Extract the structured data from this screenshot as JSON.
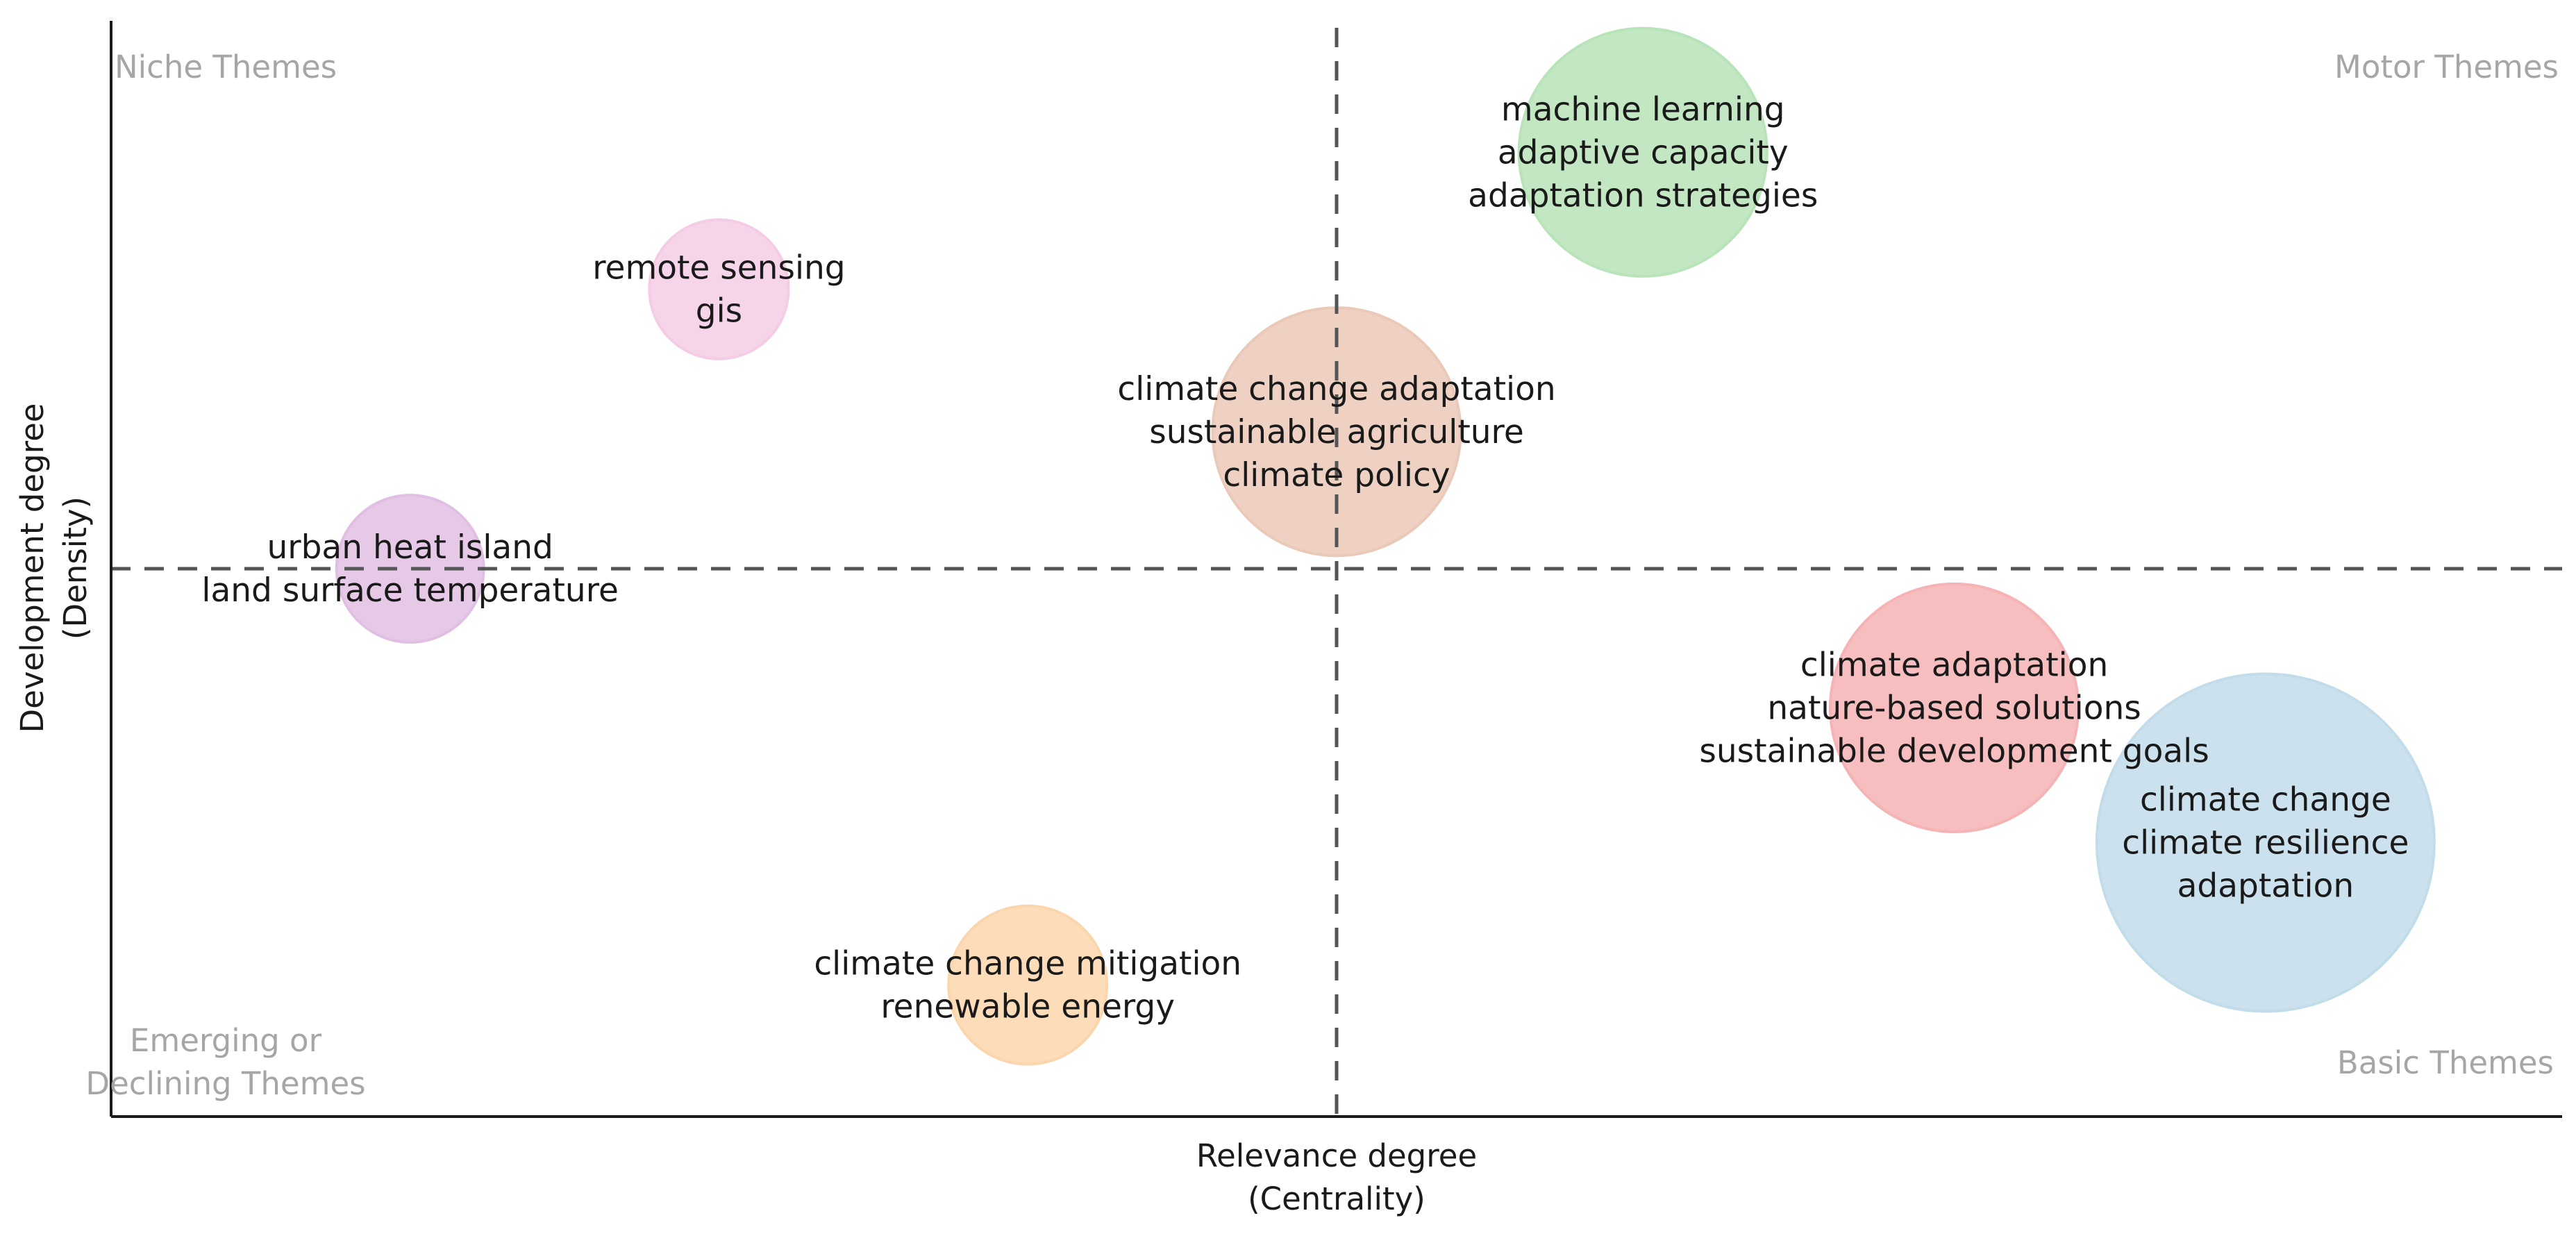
{
  "chart_data": {
    "type": "scatter",
    "subtype": "thematic-map-bubble",
    "xlabel": [
      "Relevance degree",
      "(Centrality)"
    ],
    "ylabel": [
      "Development degree",
      "(Density)"
    ],
    "xlim": [
      0,
      1
    ],
    "ylim": [
      0,
      1
    ],
    "center": {
      "x": 0.5,
      "y": 0.5
    },
    "grid": false,
    "quadrants": {
      "top_left": [
        "Niche Themes"
      ],
      "top_right": [
        "Motor Themes"
      ],
      "bottom_left": [
        "Emerging or",
        "Declining Themes"
      ],
      "bottom_right": [
        "Basic Themes"
      ]
    },
    "clusters": [
      {
        "labels": [
          "machine learning",
          "adaptive capacity",
          "adaptation strategies"
        ],
        "x": 0.625,
        "y": 0.88,
        "size": 0.54,
        "color": "#b9e3b9"
      },
      {
        "labels": [
          "remote sensing",
          "gis"
        ],
        "x": 0.248,
        "y": 0.755,
        "size": 0.17,
        "color": "#f5cce5"
      },
      {
        "labels": [
          "climate change adaptation",
          "sustainable agriculture",
          "climate policy"
        ],
        "x": 0.5,
        "y": 0.625,
        "size": 0.54,
        "color": "#ebc9b8"
      },
      {
        "labels": [
          "urban heat island",
          "land surface temperature"
        ],
        "x": 0.122,
        "y": 0.5,
        "size": 0.19,
        "color": "#e0bfe3"
      },
      {
        "labels": [
          "climate adaptation",
          "nature-based solutions",
          "sustainable development goals"
        ],
        "x": 0.752,
        "y": 0.373,
        "size": 0.54,
        "color": "#f6b3b5"
      },
      {
        "labels": [
          "climate change",
          "climate resilience",
          "adaptation"
        ],
        "x": 0.879,
        "y": 0.25,
        "size": 1.0,
        "color": "#c2dcea"
      },
      {
        "labels": [
          "climate change mitigation",
          "renewable energy"
        ],
        "x": 0.374,
        "y": 0.12,
        "size": 0.22,
        "color": "#fbd6ad"
      }
    ],
    "colors": {
      "axis": "#1a1a1a",
      "divider": "#555555",
      "quadrant_text": "#a6a6a6",
      "label_text": "#1a1a1a"
    }
  }
}
